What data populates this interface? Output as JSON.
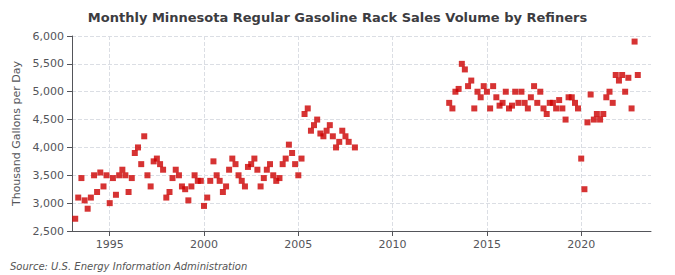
{
  "chart_data": {
    "type": "scatter",
    "title": "Monthly Minnesota Regular Gasoline Rack Sales Volume by Refiners",
    "ylabel": "Thousand Gallons per Day",
    "annotations": [
      "Source: U.S. Energy Information Administration"
    ],
    "color": "#cc0000",
    "marker": "square",
    "grid": true,
    "xlim": [
      1993.0,
      2023.7
    ],
    "xticks": [
      1995,
      2000,
      2005,
      2010,
      2015,
      2020
    ],
    "ylim": [
      2500,
      6000
    ],
    "yticks": [
      {
        "value": 2500,
        "label": "2,500"
      },
      {
        "value": 3000,
        "label": "3,000"
      },
      {
        "value": 3500,
        "label": "3,500"
      },
      {
        "value": 4000,
        "label": "4,000"
      },
      {
        "value": 4500,
        "label": "4,500"
      },
      {
        "value": 5000,
        "label": "5,000"
      },
      {
        "value": 5500,
        "label": "5,500"
      },
      {
        "value": 6000,
        "label": "6,000"
      }
    ],
    "x": [
      1993.17,
      1993.33,
      1993.5,
      1993.67,
      1993.83,
      1994.0,
      1994.17,
      1994.33,
      1994.5,
      1994.67,
      1994.83,
      1995.0,
      1995.17,
      1995.33,
      1995.5,
      1995.67,
      1995.83,
      1996.0,
      1996.17,
      1996.33,
      1996.5,
      1996.67,
      1996.83,
      1997.0,
      1997.17,
      1997.33,
      1997.5,
      1997.67,
      1997.83,
      1998.0,
      1998.17,
      1998.33,
      1998.5,
      1998.67,
      1998.83,
      1999.0,
      1999.17,
      1999.33,
      1999.5,
      1999.67,
      1999.83,
      2000.0,
      2000.17,
      2000.33,
      2000.5,
      2000.67,
      2000.83,
      2001.0,
      2001.17,
      2001.33,
      2001.5,
      2001.67,
      2001.83,
      2002.0,
      2002.17,
      2002.33,
      2002.5,
      2002.67,
      2002.83,
      2003.0,
      2003.17,
      2003.33,
      2003.5,
      2003.67,
      2003.83,
      2004.0,
      2004.17,
      2004.33,
      2004.5,
      2004.67,
      2004.83,
      2005.0,
      2005.17,
      2005.33,
      2005.5,
      2005.67,
      2005.83,
      2006.0,
      2006.17,
      2006.33,
      2006.5,
      2006.67,
      2006.83,
      2007.0,
      2007.17,
      2007.33,
      2007.5,
      2007.67,
      2008.0,
      2013.0,
      2013.17,
      2013.33,
      2013.5,
      2013.67,
      2013.83,
      2014.0,
      2014.17,
      2014.33,
      2014.5,
      2014.67,
      2014.83,
      2015.0,
      2015.17,
      2015.33,
      2015.5,
      2015.67,
      2015.83,
      2016.0,
      2016.17,
      2016.33,
      2016.5,
      2016.67,
      2016.83,
      2017.0,
      2017.17,
      2017.33,
      2017.5,
      2017.67,
      2017.83,
      2018.0,
      2018.17,
      2018.33,
      2018.5,
      2018.67,
      2018.83,
      2019.0,
      2019.17,
      2019.33,
      2019.5,
      2019.67,
      2019.83,
      2020.0,
      2020.17,
      2020.33,
      2020.5,
      2020.67,
      2020.83,
      2021.0,
      2021.17,
      2021.33,
      2021.5,
      2021.67,
      2021.83,
      2022.0,
      2022.17,
      2022.33,
      2022.5,
      2022.67,
      2022.83,
      2023.0
    ],
    "values": [
      2720,
      3100,
      3450,
      3050,
      2900,
      3100,
      3500,
      3200,
      3550,
      3300,
      3500,
      3000,
      3450,
      3150,
      3500,
      3600,
      3500,
      3200,
      3450,
      3900,
      4000,
      3700,
      4200,
      3500,
      3300,
      3750,
      3800,
      3700,
      3600,
      3100,
      3200,
      3450,
      3600,
      3500,
      3300,
      3250,
      3050,
      3300,
      3500,
      3400,
      3400,
      2950,
      3100,
      3400,
      3750,
      3500,
      3400,
      3200,
      3300,
      3600,
      3800,
      3700,
      3500,
      3400,
      3300,
      3650,
      3700,
      3800,
      3600,
      3300,
      3450,
      3600,
      3700,
      3500,
      3400,
      3450,
      3700,
      3800,
      4050,
      3900,
      3700,
      3500,
      3800,
      4600,
      4700,
      4300,
      4400,
      4500,
      4250,
      4200,
      4300,
      4400,
      4200,
      4000,
      4100,
      4300,
      4200,
      4100,
      4000,
      4800,
      4700,
      5000,
      5050,
      5500,
      5400,
      5100,
      5200,
      4700,
      5000,
      4900,
      5100,
      5000,
      4700,
      5100,
      4900,
      4750,
      4800,
      5000,
      4700,
      4750,
      5000,
      4800,
      5000,
      4800,
      4700,
      4900,
      5100,
      4800,
      5000,
      4700,
      4600,
      4800,
      4800,
      4700,
      4850,
      4700,
      4500,
      4900,
      4900,
      4800,
      4700,
      3800,
      3250,
      4450,
      4950,
      4500,
      4600,
      4500,
      4600,
      4900,
      5000,
      4800,
      5300,
      5200,
      5300,
      5000,
      5250,
      4700,
      5900,
      5300
    ]
  }
}
